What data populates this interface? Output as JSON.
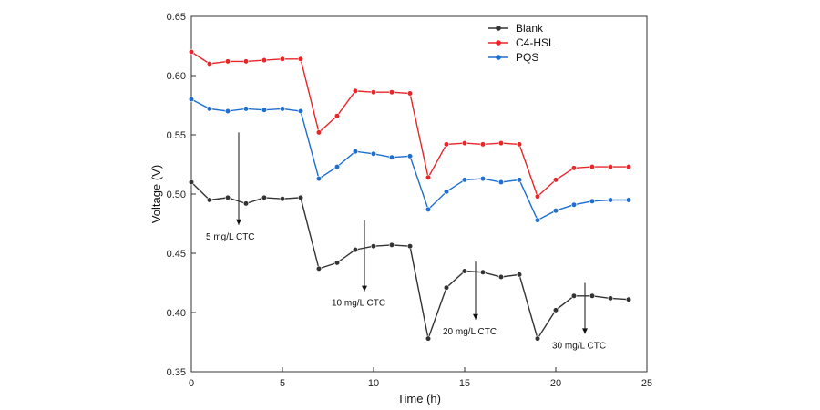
{
  "chart_data": {
    "type": "line",
    "xlabel": "Time (h)",
    "ylabel": "Voltage (V)",
    "xlim": [
      0,
      25
    ],
    "ylim": [
      0.35,
      0.65
    ],
    "x_ticks": [
      0,
      5,
      10,
      15,
      20,
      25
    ],
    "y_ticks": [
      0.35,
      0.4,
      0.45,
      0.5,
      0.55,
      0.6,
      0.65
    ],
    "y_tick_labels": [
      "0.35",
      "0.40",
      "0.45",
      "0.50",
      "0.55",
      "0.60",
      "0.65"
    ],
    "grid": false,
    "legend_position": "top-right",
    "x": [
      0,
      1,
      2,
      3,
      4,
      5,
      6,
      7,
      8,
      9,
      10,
      11,
      12,
      13,
      14,
      15,
      16,
      17,
      18,
      19,
      20,
      21,
      22,
      23,
      24
    ],
    "series": [
      {
        "name": "Blank",
        "color": "#333333",
        "values": [
          0.51,
          0.495,
          0.497,
          0.492,
          0.497,
          0.496,
          0.497,
          0.437,
          0.442,
          0.453,
          0.456,
          0.457,
          0.456,
          0.378,
          0.421,
          0.435,
          0.434,
          0.43,
          0.432,
          0.378,
          0.402,
          0.414,
          0.414,
          0.412,
          0.411
        ]
      },
      {
        "name": "C4-HSL",
        "color": "#e8262a",
        "values": [
          0.62,
          0.61,
          0.612,
          0.612,
          0.613,
          0.614,
          0.614,
          0.552,
          0.566,
          0.587,
          0.586,
          0.586,
          0.585,
          0.514,
          0.542,
          0.543,
          0.542,
          0.543,
          0.542,
          0.498,
          0.512,
          0.522,
          0.523,
          0.523,
          0.523
        ]
      },
      {
        "name": "PQS",
        "color": "#1f6fd1",
        "values": [
          0.58,
          0.572,
          0.57,
          0.572,
          0.571,
          0.572,
          0.57,
          0.513,
          0.523,
          0.536,
          0.534,
          0.531,
          0.532,
          0.487,
          0.502,
          0.512,
          0.513,
          0.51,
          0.512,
          0.478,
          0.486,
          0.491,
          0.494,
          0.495,
          0.495
        ]
      }
    ],
    "annotations": [
      {
        "text": "5 mg/L CTC",
        "x": 2.6,
        "y_from": 0.552,
        "y_to": 0.474
      },
      {
        "text": "10 mg/L CTC",
        "x": 9.5,
        "y_from": 0.478,
        "y_to": 0.418
      },
      {
        "text": "20 mg/L CTC",
        "x": 15.6,
        "y_from": 0.443,
        "y_to": 0.394
      },
      {
        "text": "30 mg/L CTC",
        "x": 21.6,
        "y_from": 0.425,
        "y_to": 0.382
      }
    ]
  }
}
